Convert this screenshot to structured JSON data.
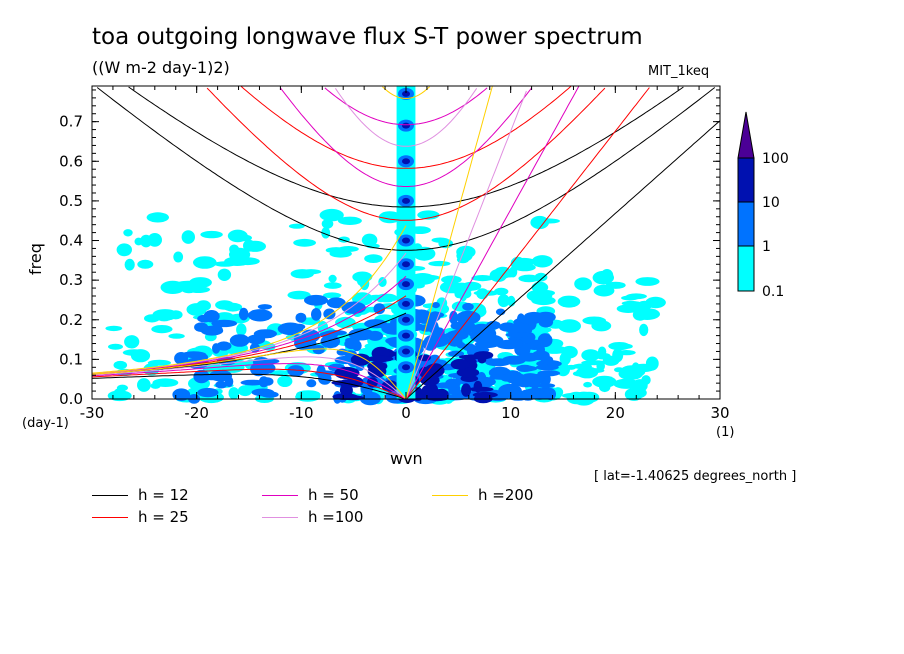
{
  "chart_data": {
    "type": "heatmap",
    "title": "toa outgoing longwave flux S-T power spectrum",
    "subtitle": "((W m-2 day-1)2)",
    "model": "MIT_1keq",
    "xlabel": "wvn",
    "ylabel": "freq",
    "x_unit": "(1)",
    "y_unit": "(day-1)",
    "xlim": [
      -30,
      30
    ],
    "ylim": [
      0,
      0.79
    ],
    "x_ticks": [
      -30,
      -20,
      -10,
      0,
      10,
      20,
      30
    ],
    "y_ticks": [
      0.0,
      0.1,
      0.2,
      0.3,
      0.4,
      0.5,
      0.6,
      0.7
    ],
    "y_tick_labels": [
      "0.0",
      "0.1",
      "0.2",
      "0.3",
      "0.4",
      "0.5",
      "0.6",
      "0.7"
    ],
    "x_tick_labels": [
      "-30",
      "-20",
      "-10",
      "0",
      "10",
      "20",
      "30"
    ],
    "note": "[ lat=-1.40625 degrees_north ]",
    "colorbar": {
      "levels": [
        "0.1",
        "1",
        "10",
        "100"
      ],
      "colors": [
        "#00ffff",
        "#0073ff",
        "#0011b0",
        "#4b0096"
      ]
    },
    "power_regions": [
      {
        "level": 0,
        "wvn": [
          -28,
          14
        ],
        "freq": [
          0.0,
          0.47
        ],
        "density": 0.55
      },
      {
        "level": 0,
        "wvn": [
          -6,
          24
        ],
        "freq": [
          0.0,
          0.32
        ],
        "density": 0.45
      },
      {
        "level": 1,
        "wvn": [
          -22,
          8
        ],
        "freq": [
          0.0,
          0.25
        ],
        "density": 0.28
      },
      {
        "level": 1,
        "wvn": [
          -1,
          14
        ],
        "freq": [
          0.0,
          0.22
        ],
        "density": 0.3
      },
      {
        "level": 2,
        "wvn": [
          -6,
          8
        ],
        "freq": [
          0.0,
          0.12
        ],
        "density": 0.12
      }
    ],
    "wvn0_peaks_freq": [
      0.08,
      0.12,
      0.16,
      0.2,
      0.24,
      0.29,
      0.34,
      0.4,
      0.5,
      0.6,
      0.69,
      0.77
    ],
    "dispersion_curves": [
      {
        "h": 12,
        "color": "#000000"
      },
      {
        "h": 25,
        "color": "#ff0000"
      },
      {
        "h": 50,
        "color": "#e000c0"
      },
      {
        "h": 100,
        "color": "#e090e0"
      },
      {
        "h": 200,
        "color": "#ffd000"
      }
    ],
    "legend": [
      "h = 12",
      "h = 25",
      "h = 50",
      "h =100",
      "h =200"
    ]
  }
}
